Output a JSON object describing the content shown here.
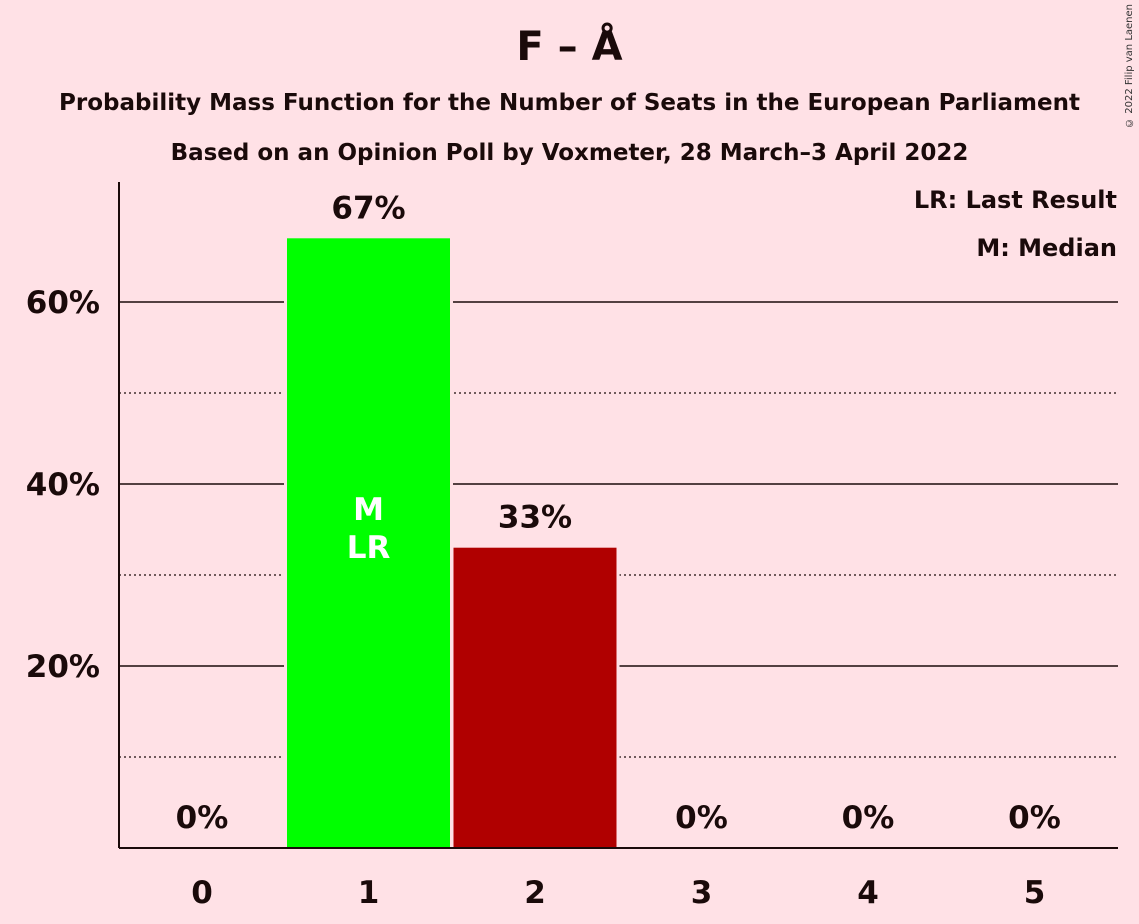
{
  "title": "F – Å",
  "subtitle_line1": "Probability Mass Function for the Number of Seats in the European Parliament",
  "subtitle_line2": "Based on an Opinion Poll by Voxmeter, 28 March–3 April 2022",
  "copyright": "© 2022 Filip van Laenen",
  "legend": {
    "last_result": "LR: Last Result",
    "median": "M: Median"
  },
  "colors": {
    "background": "#FFE1E6",
    "median_bar": "#00FF00",
    "other_bar": "#B00000",
    "ink": "#1a0a0a"
  },
  "chart_data": {
    "type": "bar",
    "categories": [
      "0",
      "1",
      "2",
      "3",
      "4",
      "5"
    ],
    "values": [
      0,
      67,
      33,
      0,
      0,
      0
    ],
    "value_labels": [
      "0%",
      "67%",
      "33%",
      "0%",
      "0%",
      "0%"
    ],
    "bar_markers": [
      "",
      "M\nLR",
      "",
      "",
      "",
      ""
    ],
    "median_index": 1,
    "last_result_index": 1,
    "ylim": [
      0,
      73
    ],
    "major_ticks": [
      20,
      40,
      60
    ],
    "major_tick_labels": [
      "20%",
      "40%",
      "60%"
    ],
    "minor_gridlines": [
      10,
      30,
      50
    ],
    "grid": true,
    "legend_position": "top-right"
  }
}
